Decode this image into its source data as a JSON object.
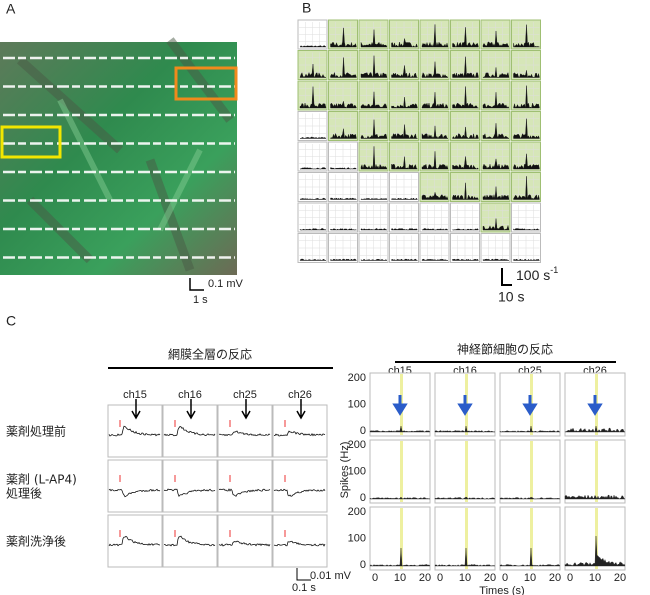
{
  "panel_a": {
    "label": "A",
    "scale_bar": {
      "amplitude": "0.1 mV",
      "time": "1 s"
    }
  },
  "panel_b": {
    "label": "B",
    "scale_bar": {
      "rate": "100 s",
      "rate_exponent": "-1",
      "time": "10 s"
    }
  },
  "panel_c": {
    "label": "C",
    "left": {
      "title": "網膜全層の反応",
      "channels": [
        "ch15",
        "ch16",
        "ch25",
        "ch26"
      ],
      "conditions": [
        [
          "薬剤処理前"
        ],
        [
          "薬剤 (L-AP4)",
          "処理後"
        ],
        [
          "薬剤洗浄後"
        ]
      ],
      "scale_bar": {
        "amplitude": "0.01 mV",
        "time": "0.1 s"
      }
    },
    "right": {
      "title": "神経節細胞の反応",
      "channels": [
        "ch15",
        "ch16",
        "ch25",
        "ch26"
      ],
      "y_label": "Spikes (Hz)",
      "y_ticks": [
        "200",
        "100",
        "0"
      ],
      "x_ticks": [
        "0",
        "10",
        "20"
      ],
      "x_label": "Times (s)"
    }
  }
}
